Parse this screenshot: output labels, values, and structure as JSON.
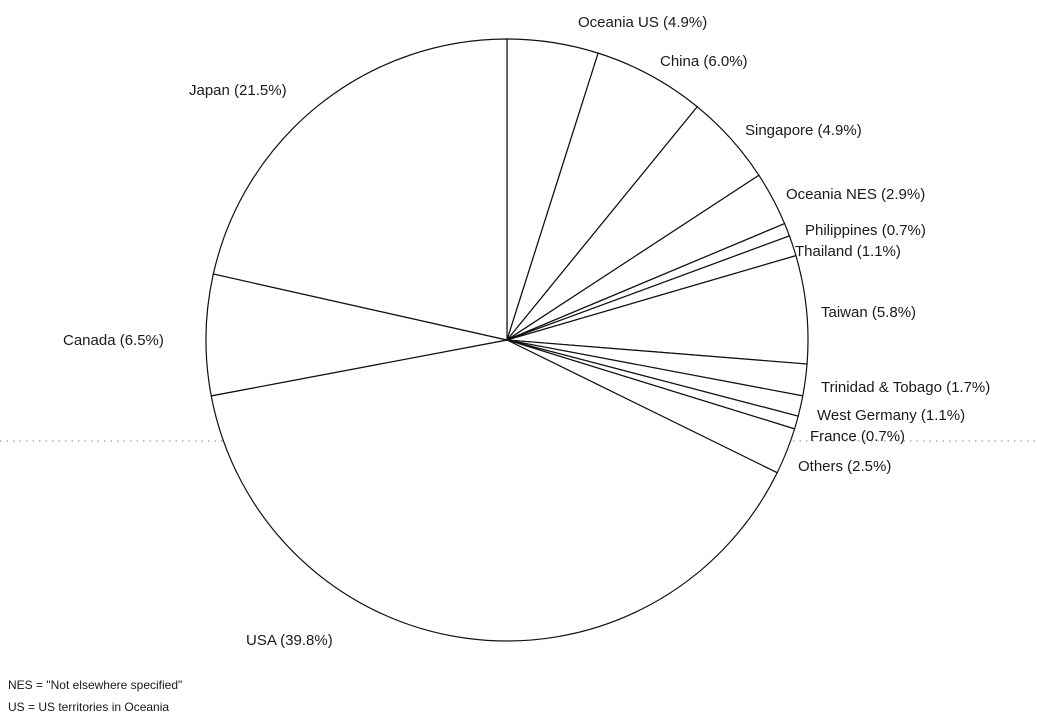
{
  "chart_data": {
    "type": "pie",
    "unit": "%",
    "categories": [
      "Oceania US",
      "China",
      "Singapore",
      "Oceania NES",
      "Philippines",
      "Thailand",
      "Taiwan",
      "Trinidad & Tobago",
      "West Germany",
      "France",
      "Others",
      "USA",
      "Canada",
      "Japan"
    ],
    "values": [
      4.9,
      6.0,
      4.9,
      2.9,
      0.7,
      1.1,
      5.8,
      1.7,
      1.1,
      0.7,
      2.5,
      39.8,
      6.5,
      21.5
    ],
    "labels": [
      "Oceania US (4.9%)",
      "China (6.0%)",
      "Singapore (4.9%)",
      "Oceania NES (2.9%)",
      "Philippines (0.7%)",
      "Thailand (1.1%)",
      "Taiwan (5.8%)",
      "Trinidad & Tobago (1.7%)",
      "West Germany (1.1%)",
      "France (0.7%)",
      "Others (2.5%)",
      "USA (39.8%)",
      "Canada (6.5%)",
      "Japan (21.5%)"
    ],
    "start": "12 o'clock",
    "direction": "clockwise",
    "fill": "#ffffff",
    "stroke": "#111111"
  },
  "notes": {
    "nes": "NES = \"Not elsewhere specified\"",
    "us": "US = US territories in Oceania"
  }
}
